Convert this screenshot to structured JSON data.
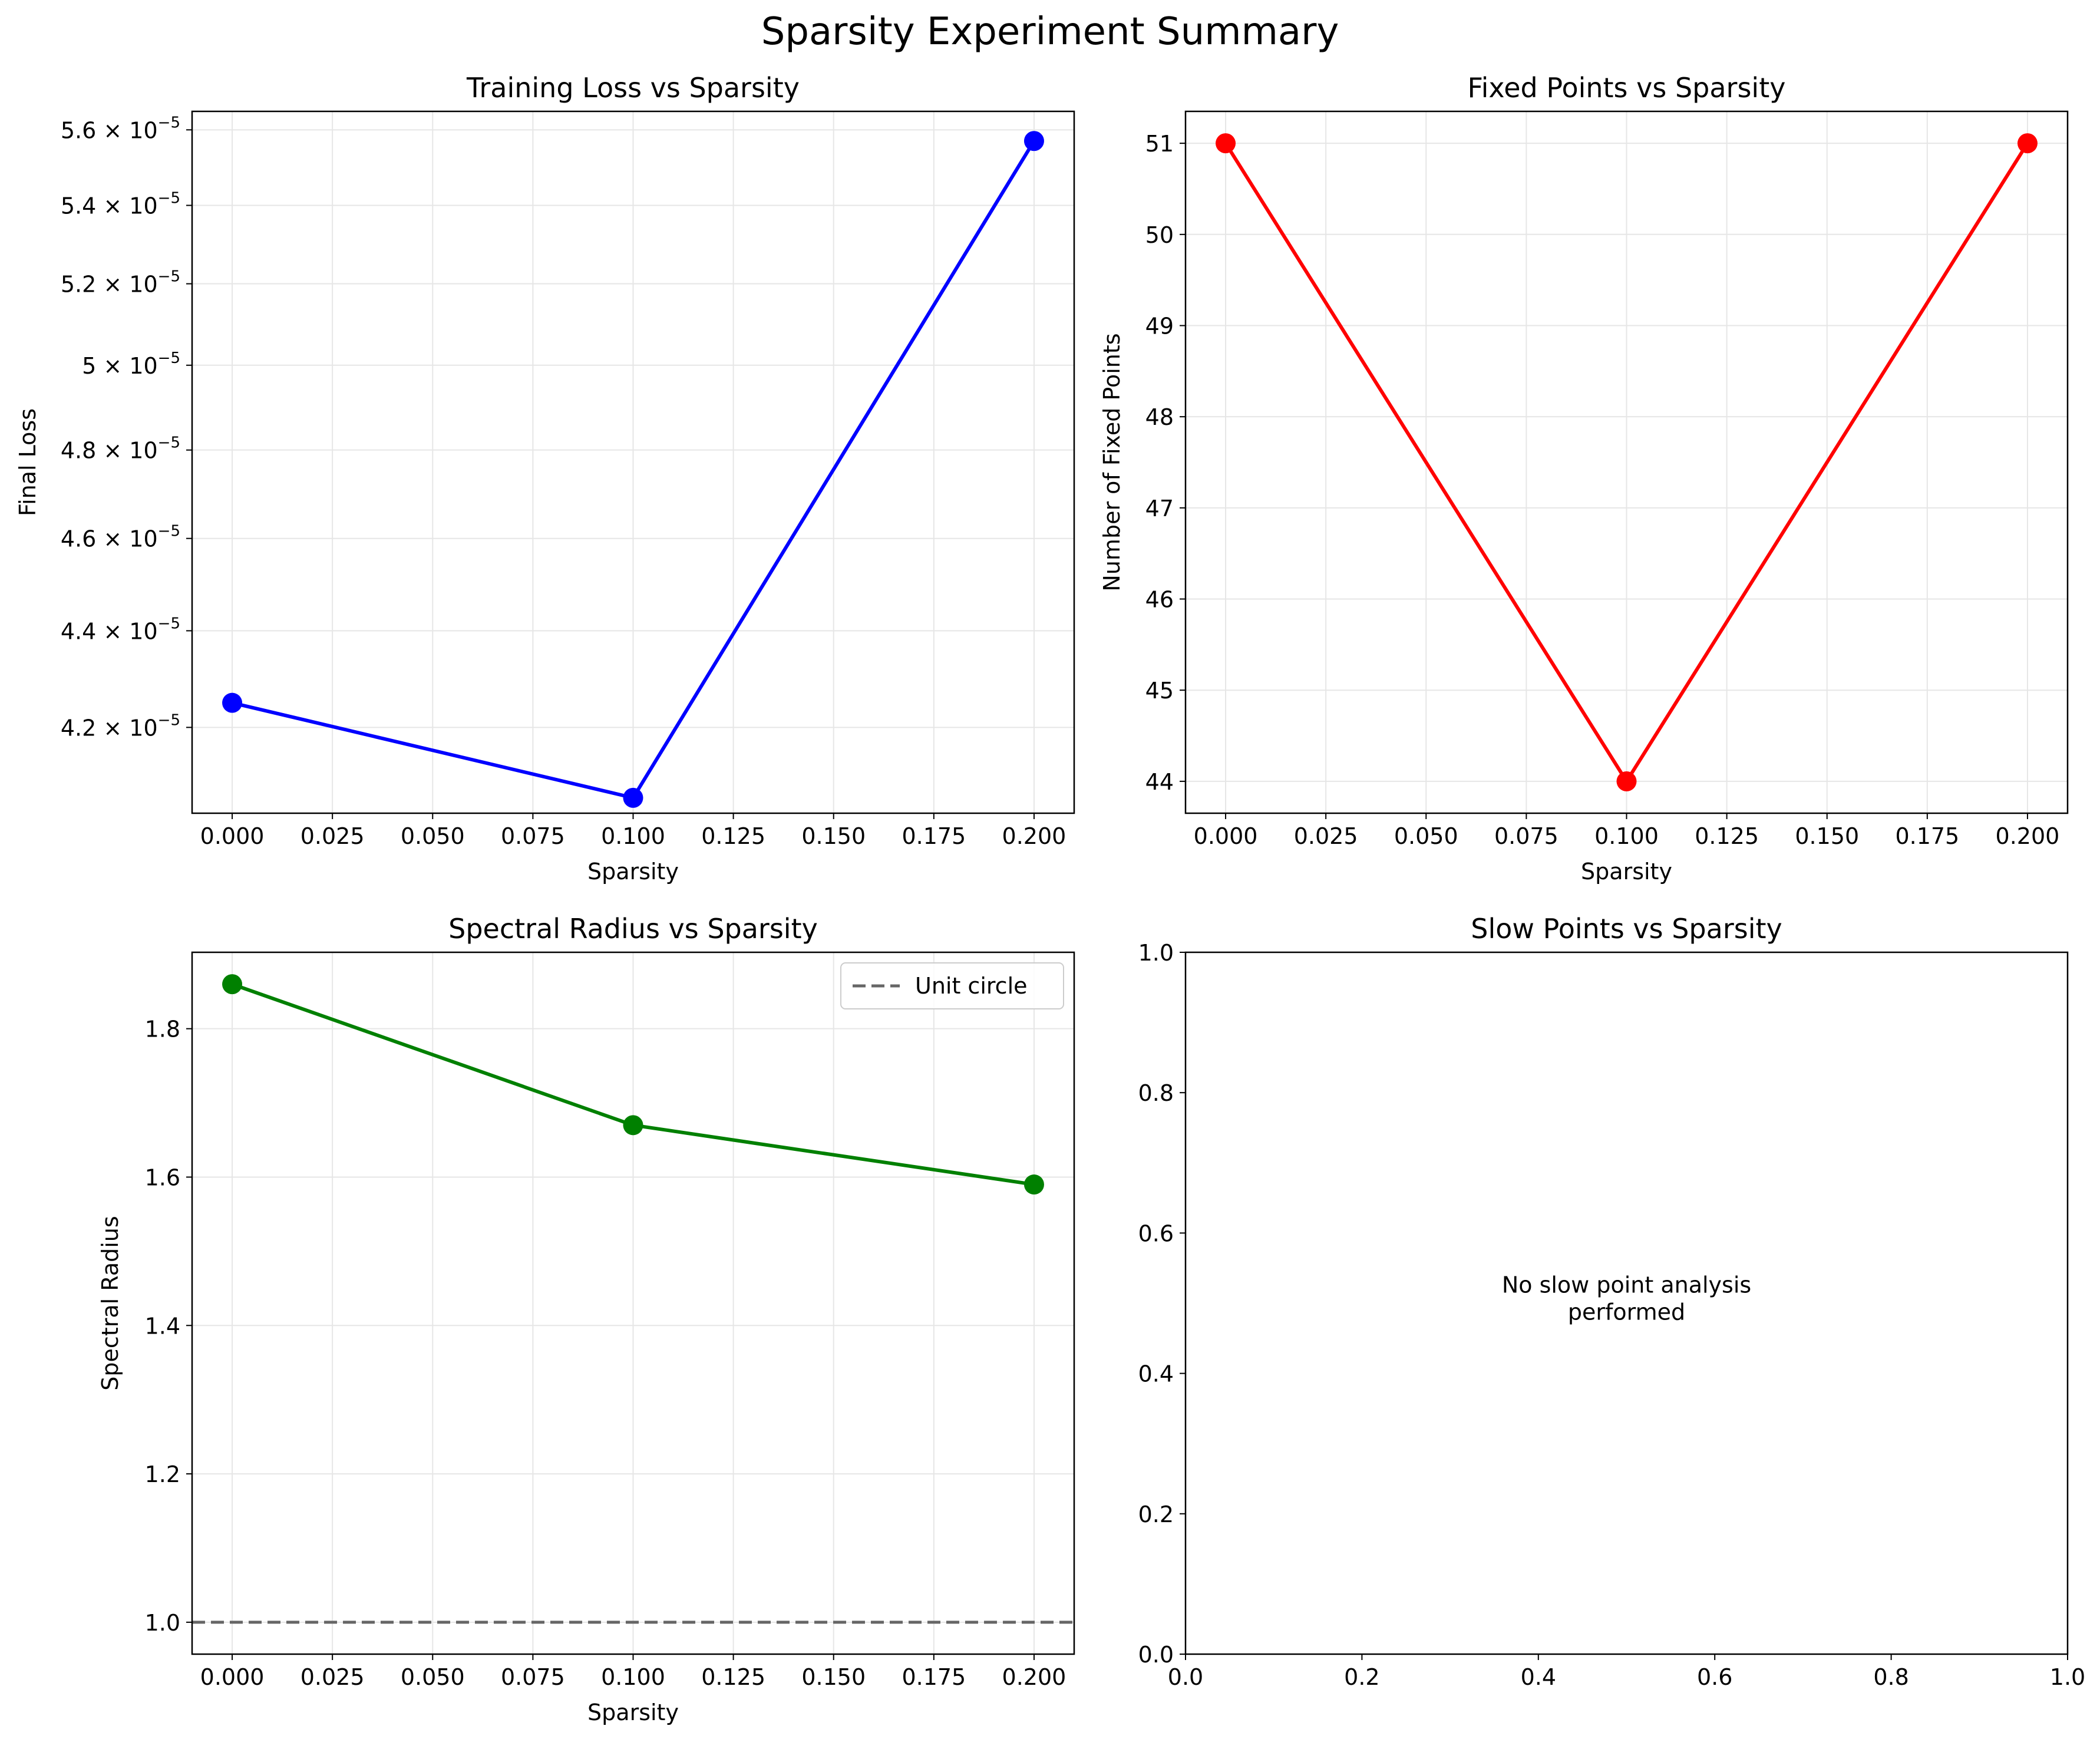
{
  "figure": {
    "title": "Sparsity Experiment Summary"
  },
  "chart_data": [
    {
      "type": "line",
      "title": "Training Loss vs Sparsity",
      "xlabel": "Sparsity",
      "ylabel": "Final Loss",
      "x": [
        0.0,
        0.1,
        0.2
      ],
      "series": [
        {
          "values": [
            4.25e-05,
            4.06e-05,
            5.57e-05
          ],
          "color": "#0000ff",
          "marker": "circle"
        }
      ],
      "xlim": [
        -0.01,
        0.21
      ],
      "ylim": [
        4.03e-05,
        5.65e-05
      ],
      "yscale": "log",
      "xticks": [
        0.0,
        0.025,
        0.05,
        0.075,
        0.1,
        0.125,
        0.15,
        0.175,
        0.2
      ],
      "xtick_labels": [
        "0.000",
        "0.025",
        "0.050",
        "0.075",
        "0.100",
        "0.125",
        "0.150",
        "0.175",
        "0.200"
      ],
      "yticks": [
        4.2e-05,
        4.4e-05,
        4.6e-05,
        4.8e-05,
        5e-05,
        5.2e-05,
        5.4e-05,
        5.6e-05
      ],
      "ytick_labels": [
        {
          "mant": "4.2",
          "exp": "−5"
        },
        {
          "mant": "4.4",
          "exp": "−5"
        },
        {
          "mant": "4.6",
          "exp": "−5"
        },
        {
          "mant": "4.8",
          "exp": "−5"
        },
        {
          "mant": "5",
          "exp": "−5"
        },
        {
          "mant": "5.2",
          "exp": "−5"
        },
        {
          "mant": "5.4",
          "exp": "−5"
        },
        {
          "mant": "5.6",
          "exp": "−5"
        }
      ],
      "grid": true
    },
    {
      "type": "line",
      "title": "Fixed Points vs Sparsity",
      "xlabel": "Sparsity",
      "ylabel": "Number of Fixed Points",
      "x": [
        0.0,
        0.1,
        0.2
      ],
      "series": [
        {
          "values": [
            51,
            44,
            51
          ],
          "color": "#ff0000",
          "marker": "circle"
        }
      ],
      "xlim": [
        -0.01,
        0.21
      ],
      "ylim": [
        43.65,
        51.35
      ],
      "xticks": [
        0.0,
        0.025,
        0.05,
        0.075,
        0.1,
        0.125,
        0.15,
        0.175,
        0.2
      ],
      "xtick_labels": [
        "0.000",
        "0.025",
        "0.050",
        "0.075",
        "0.100",
        "0.125",
        "0.150",
        "0.175",
        "0.200"
      ],
      "yticks": [
        44,
        45,
        46,
        47,
        48,
        49,
        50,
        51
      ],
      "ytick_labels": [
        "44",
        "45",
        "46",
        "47",
        "48",
        "49",
        "50",
        "51"
      ],
      "grid": true
    },
    {
      "type": "line",
      "title": "Spectral Radius vs Sparsity",
      "xlabel": "Sparsity",
      "ylabel": "Spectral Radius",
      "x": [
        0.0,
        0.1,
        0.2
      ],
      "series": [
        {
          "values": [
            1.86,
            1.67,
            1.59
          ],
          "color": "#008000",
          "marker": "circle"
        }
      ],
      "reference_line": {
        "y": 1.0,
        "label": "Unit circle",
        "color": "#666666",
        "style": "dashed"
      },
      "legend": {
        "position": "top-right",
        "entries": [
          "Unit circle"
        ]
      },
      "xlim": [
        -0.01,
        0.21
      ],
      "ylim": [
        0.957,
        1.903
      ],
      "xticks": [
        0.0,
        0.025,
        0.05,
        0.075,
        0.1,
        0.125,
        0.15,
        0.175,
        0.2
      ],
      "xtick_labels": [
        "0.000",
        "0.025",
        "0.050",
        "0.075",
        "0.100",
        "0.125",
        "0.150",
        "0.175",
        "0.200"
      ],
      "yticks": [
        1.0,
        1.2,
        1.4,
        1.6,
        1.8
      ],
      "ytick_labels": [
        "1.0",
        "1.2",
        "1.4",
        "1.6",
        "1.8"
      ],
      "grid": true
    },
    {
      "type": "line",
      "title": "Slow Points vs Sparsity",
      "xlabel": "",
      "ylabel": "",
      "series": [],
      "annotation": "No slow point analysis\nperformed",
      "xlim": [
        0,
        1
      ],
      "ylim": [
        0,
        1
      ],
      "xticks": [
        0.0,
        0.2,
        0.4,
        0.6,
        0.8,
        1.0
      ],
      "xtick_labels": [
        "0.0",
        "0.2",
        "0.4",
        "0.6",
        "0.8",
        "1.0"
      ],
      "yticks": [
        0.0,
        0.2,
        0.4,
        0.6,
        0.8,
        1.0
      ],
      "ytick_labels": [
        "0.0",
        "0.2",
        "0.4",
        "0.6",
        "0.8",
        "1.0"
      ],
      "grid": false
    }
  ]
}
